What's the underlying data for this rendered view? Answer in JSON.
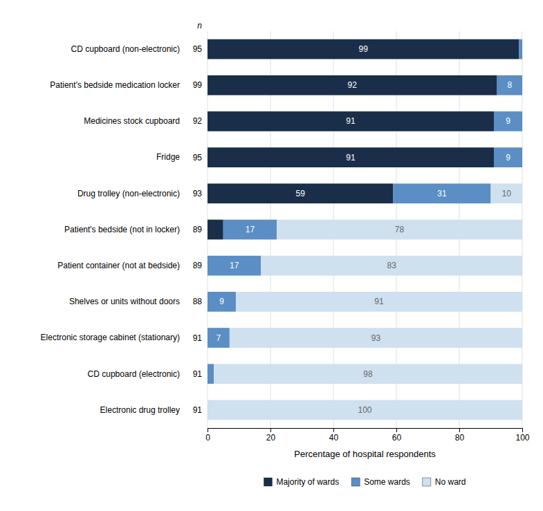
{
  "chart_data": {
    "type": "bar",
    "orientation": "horizontal",
    "stacked": true,
    "categories": [
      "Electronic drug trolley",
      "CD cupboard (electronic)",
      "Electronic storage cabinet (stationary)",
      "Shelves or units without doors",
      "Patient container (not at bedside)",
      "Patient's bedside (not in locker)",
      "Drug trolley (non-electronic)",
      "Fridge",
      "Medicines stock cupboard",
      "Patient's bedside medication locker",
      "CD cupboard (non-electronic)"
    ],
    "series": [
      {
        "name": "Majority of wards",
        "color": "#1a2e4a",
        "values": [
          0,
          0,
          0,
          0,
          0,
          5,
          59,
          91,
          91,
          92,
          99
        ],
        "value_labels": [
          null,
          null,
          null,
          null,
          null,
          null,
          "59",
          "91",
          "91",
          "92",
          "99"
        ]
      },
      {
        "name": "Some wards",
        "color": "#5b8ec4",
        "values": [
          0,
          2,
          7,
          9,
          17,
          17,
          31,
          9,
          9,
          8,
          1
        ],
        "value_labels": [
          null,
          null,
          "7",
          "9",
          "17",
          "17",
          "31",
          "9",
          "9",
          "8",
          null
        ]
      },
      {
        "name": "No ward",
        "color": "#cfe0ef",
        "values": [
          100,
          98,
          93,
          91,
          83,
          78,
          10,
          0,
          0,
          0,
          0
        ],
        "value_labels": [
          "100",
          "98",
          "93",
          "91",
          "83",
          "78",
          "10",
          null,
          null,
          null,
          null
        ]
      }
    ],
    "sample_size": {
      "label": "n",
      "values": [
        91,
        91,
        91,
        88,
        89,
        89,
        93,
        95,
        92,
        99,
        95
      ]
    },
    "xlabel": "Percentage of hospital respondents",
    "xlim": [
      0,
      100
    ],
    "xticks": [
      0,
      20,
      40,
      60,
      80,
      100
    ],
    "grid": true,
    "data_labels": true,
    "legend": "bottom"
  }
}
